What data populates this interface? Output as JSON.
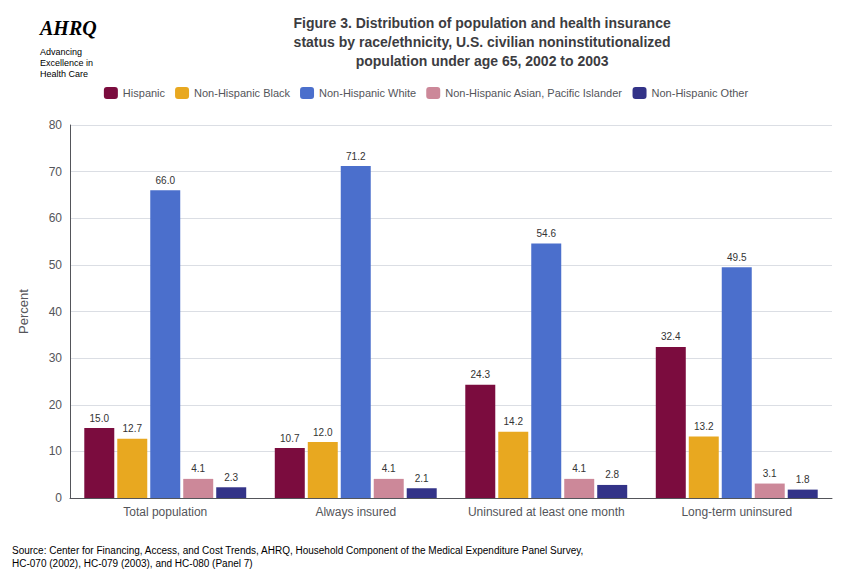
{
  "chart_data": {
    "type": "bar",
    "title": "Figure 3. Distribution of population and health insurance\nstatus by race/ethnicity, U.S. civilian noninstitutionalized\npopulation under age 65, 2002 to 2003",
    "categories": [
      "Total population",
      "Always insured",
      "Uninsured at least one month",
      "Long-term uninsured"
    ],
    "series": [
      {
        "name": "Hispanic",
        "color": "#7B0C3E",
        "values": [
          15.0,
          10.7,
          24.3,
          32.4
        ],
        "value_labels": [
          "15.0",
          "10.7",
          "24.3",
          "32.4"
        ]
      },
      {
        "name": "Non-Hispanic Black",
        "color": "#E8A820",
        "values": [
          12.7,
          12.0,
          14.2,
          13.2
        ],
        "value_labels": [
          "12.7",
          "12.0",
          "14.2",
          "13.2"
        ]
      },
      {
        "name": "Non-Hispanic White",
        "color": "#4B6FCC",
        "values": [
          66.0,
          71.2,
          54.6,
          49.5
        ],
        "value_labels": [
          "66.0",
          "71.2",
          "54.6",
          "49.5"
        ]
      },
      {
        "name": "Non-Hispanic Asian, Pacific Islander",
        "color": "#CC8899",
        "values": [
          4.1,
          4.1,
          4.1,
          3.1
        ],
        "value_labels": [
          "4.1",
          "4.1",
          "4.1",
          "3.1"
        ]
      },
      {
        "name": "Non-Hispanic Other",
        "color": "#333388",
        "values": [
          2.3,
          2.1,
          2.8,
          1.8
        ],
        "value_labels": [
          "2.3",
          "2.1",
          "2.8",
          "1.8"
        ]
      }
    ],
    "ylabel": "Percent",
    "ylim": [
      0,
      80
    ],
    "yticks": [
      0,
      10,
      20,
      30,
      40,
      50,
      60,
      70,
      80
    ],
    "grid": true,
    "legend": "top",
    "data_labels": true,
    "annotations": [
      "AHRQ",
      "Advancing\nExcellence in\nHealth Care",
      "Source: Center for Financing, Access, and Cost Trends, AHRQ, Household Component of the Medical Expenditure Panel Survey,\nHC-070 (2002), HC-079 (2003), and HC-080 (Panel 7)"
    ]
  }
}
